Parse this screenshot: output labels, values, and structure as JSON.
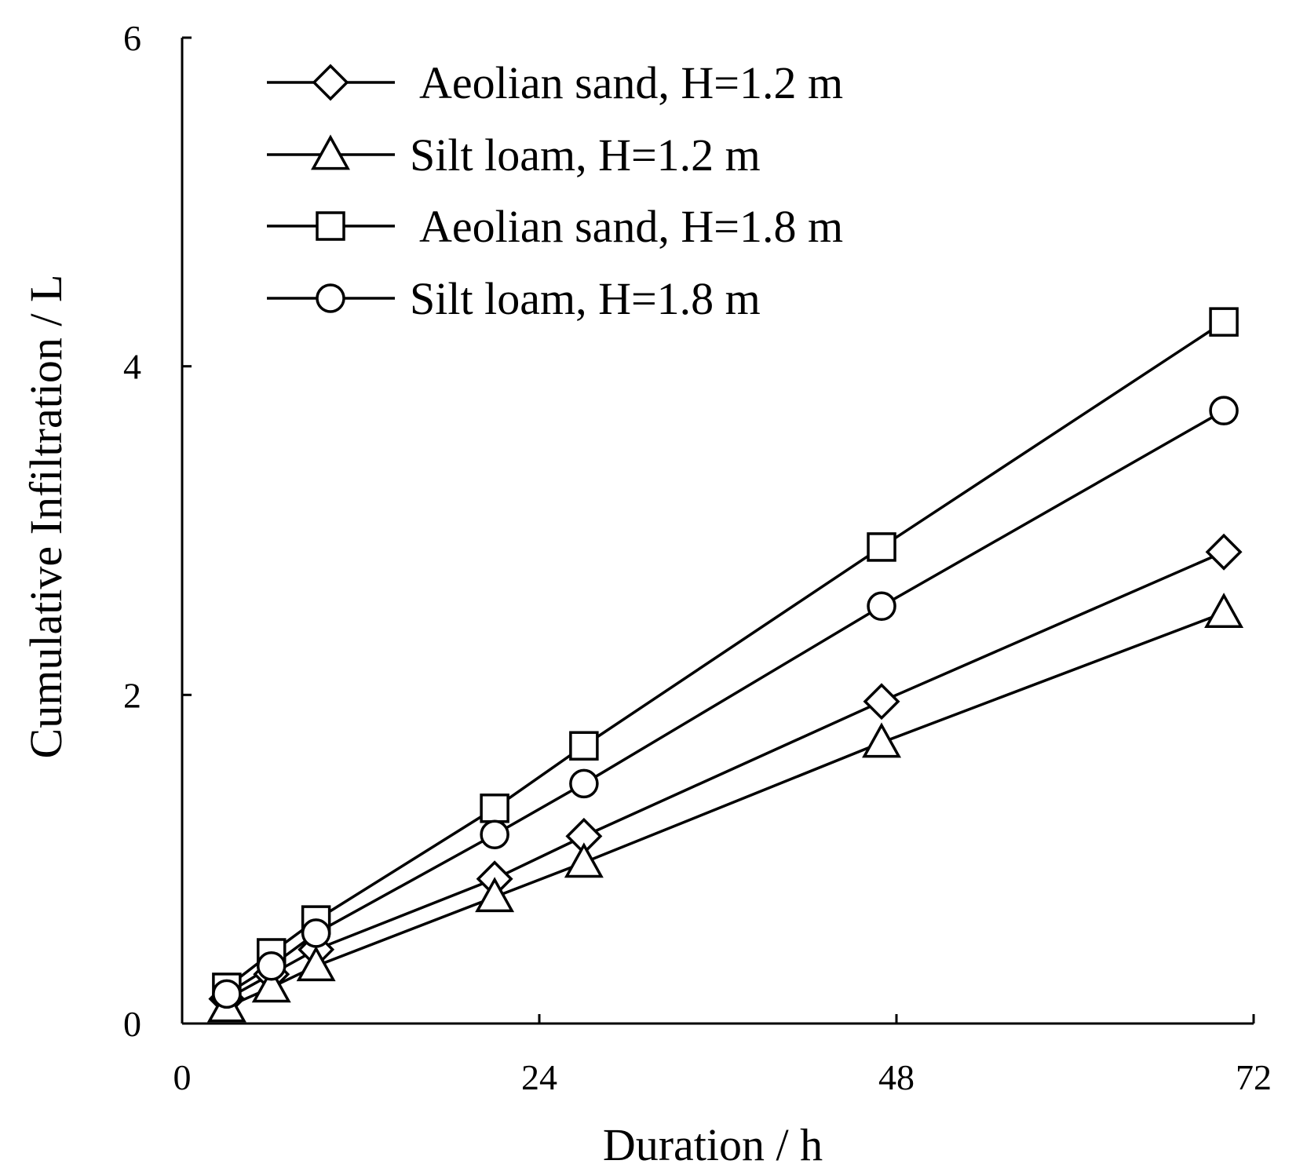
{
  "chart_data": {
    "type": "line",
    "title": "",
    "xlabel": "Duration / h",
    "ylabel": "Cumulative Infiltration / L",
    "xlim": [
      0,
      72
    ],
    "ylim": [
      0,
      6
    ],
    "xticks": [
      0,
      24,
      48,
      72
    ],
    "yticks": [
      0,
      2,
      4,
      6
    ],
    "x_tick_labels": [
      "0",
      "24",
      "48",
      "72"
    ],
    "y_tick_labels": [
      "0",
      "2",
      "4",
      "6"
    ],
    "grid": false,
    "legend_position": "top-left",
    "series": [
      {
        "name": " Aeolian sand, H=1.2 m",
        "marker": "diamond",
        "x": [
          3,
          6,
          9,
          21,
          27,
          47,
          70
        ],
        "y": [
          0.15,
          0.3,
          0.45,
          0.88,
          1.14,
          1.96,
          2.87
        ]
      },
      {
        "name": "Silt loam, H=1.2 m",
        "marker": "triangle",
        "x": [
          3,
          6,
          9,
          21,
          27,
          47,
          70
        ],
        "y": [
          0.1,
          0.22,
          0.35,
          0.77,
          0.98,
          1.71,
          2.5
        ]
      },
      {
        "name": " Aeolian sand, H=1.8 m",
        "marker": "square",
        "x": [
          3,
          6,
          9,
          21,
          27,
          47,
          70
        ],
        "y": [
          0.22,
          0.43,
          0.63,
          1.31,
          1.69,
          2.9,
          4.27
        ]
      },
      {
        "name": "Silt loam, H=1.8 m",
        "marker": "circle",
        "x": [
          3,
          6,
          9,
          21,
          27,
          47,
          70
        ],
        "y": [
          0.18,
          0.35,
          0.55,
          1.15,
          1.46,
          2.54,
          3.73
        ]
      }
    ]
  }
}
